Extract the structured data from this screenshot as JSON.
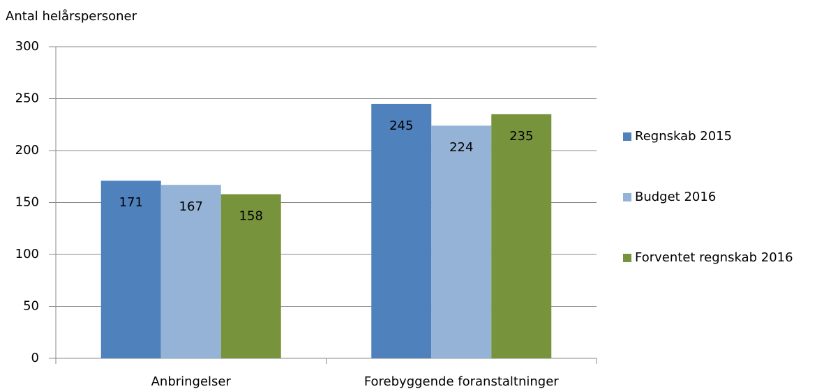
{
  "chart_data": {
    "type": "bar",
    "y_label": "Antal helårspersoner",
    "categories": [
      "Anbringelser",
      "Forebyggende foranstaltninger"
    ],
    "series": [
      {
        "name": "Regnskab 2015",
        "color": "#4f81bd",
        "values": [
          171,
          245
        ]
      },
      {
        "name": "Budget 2016",
        "color": "#95b3d7",
        "values": [
          167,
          224
        ]
      },
      {
        "name": "Forventet regnskab 2016",
        "color": "#77933c",
        "values": [
          158,
          235
        ]
      }
    ],
    "ylim": [
      0,
      300
    ],
    "yticks": [
      0,
      50,
      100,
      150,
      200,
      250,
      300
    ],
    "grid": true,
    "legend": "right"
  }
}
